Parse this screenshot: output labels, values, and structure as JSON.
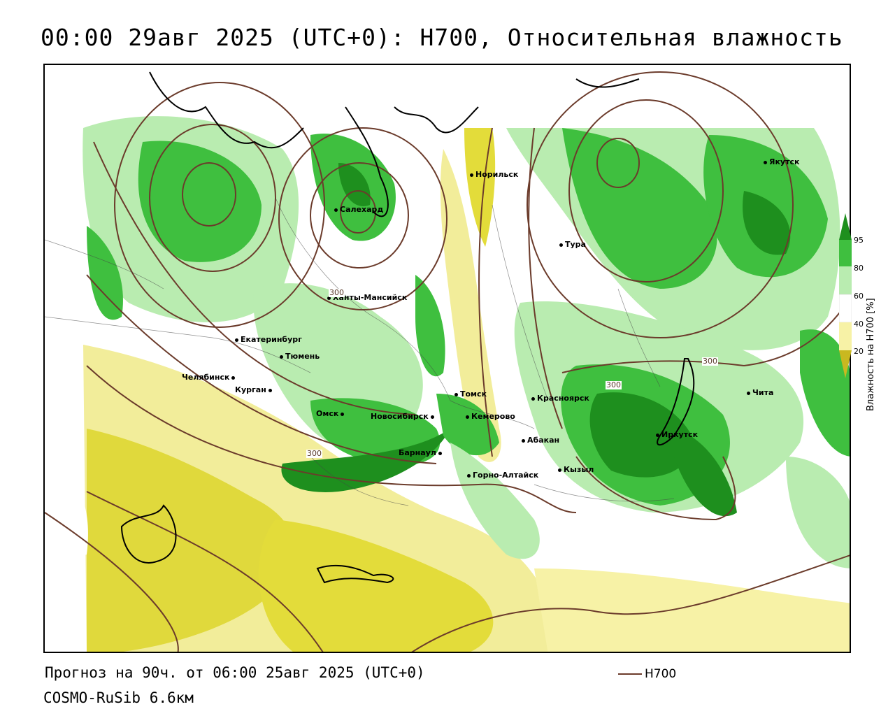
{
  "title": "00:00 29авг 2025 (UTC+0): H700, Относительная влажность",
  "footer": {
    "forecast": "Прогноз на 90ч. от 06:00 25авг 2025 (UTC+0)",
    "model": "COSMO-RuSib 6.6км"
  },
  "legend": {
    "line_label": "H700",
    "line_color": "#6b3b2b"
  },
  "colorbar": {
    "title": "Влажность на H700 [%]",
    "ticks": [
      "95",
      "80",
      "60",
      "40",
      "20"
    ],
    "colors": [
      "#1e8f1e",
      "#3fbf3f",
      "#b9ecb0",
      "#ffffff",
      "#f7f2a6",
      "#e3dc3a",
      "#c9b820"
    ]
  },
  "contour_labels": [
    "300",
    "300",
    "300",
    "300"
  ],
  "cities": [
    {
      "name": "Салехард"
    },
    {
      "name": "Норильск"
    },
    {
      "name": "Якутск"
    },
    {
      "name": "Тура"
    },
    {
      "name": "Ханты-Мансийск"
    },
    {
      "name": "Екатеринбург"
    },
    {
      "name": "Тюмень"
    },
    {
      "name": "Челябинск"
    },
    {
      "name": "Курган"
    },
    {
      "name": "Омск"
    },
    {
      "name": "Новосибирск"
    },
    {
      "name": "Томск"
    },
    {
      "name": "Кемерово"
    },
    {
      "name": "Красноярск"
    },
    {
      "name": "Барнаул"
    },
    {
      "name": "Абакан"
    },
    {
      "name": "Горно-Алтайск"
    },
    {
      "name": "Кызыл"
    },
    {
      "name": "Иркутск"
    },
    {
      "name": "Чита"
    }
  ]
}
